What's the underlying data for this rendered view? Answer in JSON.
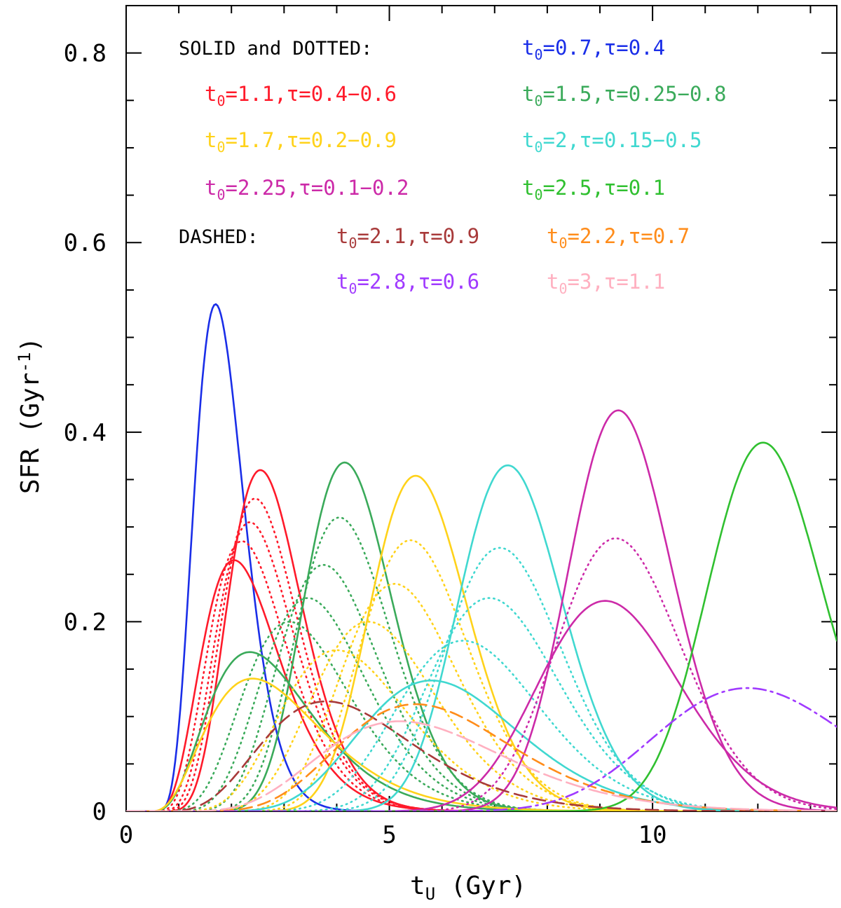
{
  "chart_data": {
    "type": "line",
    "title": "",
    "xlabel": "t_U (Gyr)",
    "xlabel_main": "t",
    "xlabel_sub": "U",
    "xlabel_rest": " (Gyr)",
    "ylabel": "SFR (Gyr-1)",
    "ylabel_main": "SFR (Gyr",
    "ylabel_sup": "-1",
    "ylabel_close": ")",
    "xlim": [
      0,
      13.5
    ],
    "ylim": [
      0,
      0.85
    ],
    "xticks": [
      0,
      5,
      10
    ],
    "yticks": [
      0,
      0.2,
      0.4,
      0.6,
      0.8
    ],
    "tick_labels_x": [
      "0",
      "5",
      "10"
    ],
    "tick_labels_y": [
      "0",
      "0.2",
      "0.4",
      "0.6",
      "0.8"
    ],
    "legend": {
      "solid_dotted_header": "SOLID and DOTTED:",
      "dashed_header": "DASHED:",
      "entries": [
        {
          "group": "solid",
          "label_t": "t",
          "label_sub": "0",
          "label_rest": "=0.7,τ=0.4",
          "color": "#1a2ee8"
        },
        {
          "group": "solid",
          "label_t": "t",
          "label_sub": "0",
          "label_rest": "=1.1,τ=0.4−0.6",
          "color": "#ff1a2a"
        },
        {
          "group": "solid",
          "label_t": "t",
          "label_sub": "0",
          "label_rest": "=1.5,τ=0.25−0.8",
          "color": "#3aaa5a"
        },
        {
          "group": "solid",
          "label_t": "t",
          "label_sub": "0",
          "label_rest": "=1.7,τ=0.2−0.9",
          "color": "#ffd21a"
        },
        {
          "group": "solid",
          "label_t": "t",
          "label_sub": "0",
          "label_rest": "=2,τ=0.15−0.5",
          "color": "#40d8d0"
        },
        {
          "group": "solid",
          "label_t": "t",
          "label_sub": "0",
          "label_rest": "=2.25,τ=0.1−0.2",
          "color": "#cc2aa8"
        },
        {
          "group": "solid",
          "label_t": "t",
          "label_sub": "0",
          "label_rest": "=2.5,τ=0.1",
          "color": "#30c030"
        },
        {
          "group": "dashed",
          "label_t": "t",
          "label_sub": "0",
          "label_rest": "=2.1,τ=0.9",
          "color": "#a83a3a"
        },
        {
          "group": "dashed",
          "label_t": "t",
          "label_sub": "0",
          "label_rest": "=2.2,τ=0.7",
          "color": "#ff8c1a"
        },
        {
          "group": "dashed",
          "label_t": "t",
          "label_sub": "0",
          "label_rest": "=2.8,τ=0.6",
          "color": "#a03aff"
        },
        {
          "group": "dashed",
          "label_t": "t",
          "label_sub": "0",
          "label_rest": "=3,τ=1.1",
          "color": "#ffb0c0"
        }
      ]
    },
    "series": [
      {
        "name": "t0=0.7,tau=0.4",
        "color": "#1a2ee8",
        "style": "solid",
        "peak_x": 1.7,
        "peak_y": 0.535
      },
      {
        "name": "t0=1.1,tau=0.4",
        "color": "#ff1a2a",
        "style": "solid",
        "peak_x": 2.55,
        "peak_y": 0.36
      },
      {
        "name": "t0=1.1,tau=0.6",
        "color": "#ff1a2a",
        "style": "solid",
        "peak_x": 2.05,
        "peak_y": 0.265
      },
      {
        "name": "t0=1.1,tau=0.45",
        "color": "#ff1a2a",
        "style": "dotted",
        "peak_x": 2.45,
        "peak_y": 0.33
      },
      {
        "name": "t0=1.1,tau=0.5",
        "color": "#ff1a2a",
        "style": "dotted",
        "peak_x": 2.35,
        "peak_y": 0.305
      },
      {
        "name": "t0=1.1,tau=0.55",
        "color": "#ff1a2a",
        "style": "dotted",
        "peak_x": 2.2,
        "peak_y": 0.285
      },
      {
        "name": "t0=1.5,tau=0.25",
        "color": "#3aaa5a",
        "style": "solid",
        "peak_x": 4.15,
        "peak_y": 0.368
      },
      {
        "name": "t0=1.5,tau=0.8",
        "color": "#3aaa5a",
        "style": "solid",
        "peak_x": 2.35,
        "peak_y": 0.168
      },
      {
        "name": "t0=1.5,tau=0.35",
        "color": "#3aaa5a",
        "style": "dotted",
        "peak_x": 4.05,
        "peak_y": 0.31
      },
      {
        "name": "t0=1.5,tau=0.45",
        "color": "#3aaa5a",
        "style": "dotted",
        "peak_x": 3.75,
        "peak_y": 0.26
      },
      {
        "name": "t0=1.5,tau=0.55",
        "color": "#3aaa5a",
        "style": "dotted",
        "peak_x": 3.45,
        "peak_y": 0.225
      },
      {
        "name": "t0=1.5,tau=0.65",
        "color": "#3aaa5a",
        "style": "dotted",
        "peak_x": 3.1,
        "peak_y": 0.2
      },
      {
        "name": "t0=1.7,tau=0.2",
        "color": "#ffd21a",
        "style": "solid",
        "peak_x": 5.5,
        "peak_y": 0.354
      },
      {
        "name": "t0=1.7,tau=0.9",
        "color": "#ffd21a",
        "style": "solid",
        "peak_x": 2.4,
        "peak_y": 0.14
      },
      {
        "name": "t0=1.7,tau=0.35",
        "color": "#ffd21a",
        "style": "dotted",
        "peak_x": 5.4,
        "peak_y": 0.286
      },
      {
        "name": "t0=1.7,tau=0.5",
        "color": "#ffd21a",
        "style": "dotted",
        "peak_x": 5.1,
        "peak_y": 0.24
      },
      {
        "name": "t0=1.7,tau=0.65",
        "color": "#ffd21a",
        "style": "dotted",
        "peak_x": 4.6,
        "peak_y": 0.2
      },
      {
        "name": "t0=1.7,tau=0.8",
        "color": "#ffd21a",
        "style": "dotted",
        "peak_x": 4.0,
        "peak_y": 0.17
      },
      {
        "name": "t0=2,tau=0.15",
        "color": "#40d8d0",
        "style": "solid",
        "peak_x": 7.25,
        "peak_y": 0.365
      },
      {
        "name": "t0=2,tau=0.5",
        "color": "#40d8d0",
        "style": "solid",
        "peak_x": 5.8,
        "peak_y": 0.138
      },
      {
        "name": "t0=2,tau=0.25",
        "color": "#40d8d0",
        "style": "dotted",
        "peak_x": 7.1,
        "peak_y": 0.278
      },
      {
        "name": "t0=2,tau=0.35",
        "color": "#40d8d0",
        "style": "dotted",
        "peak_x": 6.9,
        "peak_y": 0.225
      },
      {
        "name": "t0=2,tau=0.42",
        "color": "#40d8d0",
        "style": "dotted",
        "peak_x": 6.4,
        "peak_y": 0.18
      },
      {
        "name": "t0=2.25,tau=0.1",
        "color": "#cc2aa8",
        "style": "solid",
        "peak_x": 9.35,
        "peak_y": 0.423
      },
      {
        "name": "t0=2.25,tau=0.2",
        "color": "#cc2aa8",
        "style": "solid",
        "peak_x": 9.1,
        "peak_y": 0.222
      },
      {
        "name": "t0=2.25,tau=0.15",
        "color": "#cc2aa8",
        "style": "dotted",
        "peak_x": 9.3,
        "peak_y": 0.288
      },
      {
        "name": "t0=2.5,tau=0.1",
        "color": "#30c030",
        "style": "solid",
        "peak_x": 12.1,
        "peak_y": 0.389
      },
      {
        "name": "t0=2.1,tau=0.9",
        "color": "#a83a3a",
        "style": "dashed",
        "peak_x": 3.8,
        "peak_y": 0.116
      },
      {
        "name": "t0=2.2,tau=0.7",
        "color": "#ff8c1a",
        "style": "dashed",
        "peak_x": 5.5,
        "peak_y": 0.113
      },
      {
        "name": "t0=2.8,tau=0.6",
        "color": "#a03aff",
        "style": "dashdot",
        "peak_x": 11.8,
        "peak_y": 0.13
      },
      {
        "name": "t0=3,tau=1.1",
        "color": "#ffb0c0",
        "style": "longdash",
        "peak_x": 5.2,
        "peak_y": 0.095
      }
    ]
  }
}
